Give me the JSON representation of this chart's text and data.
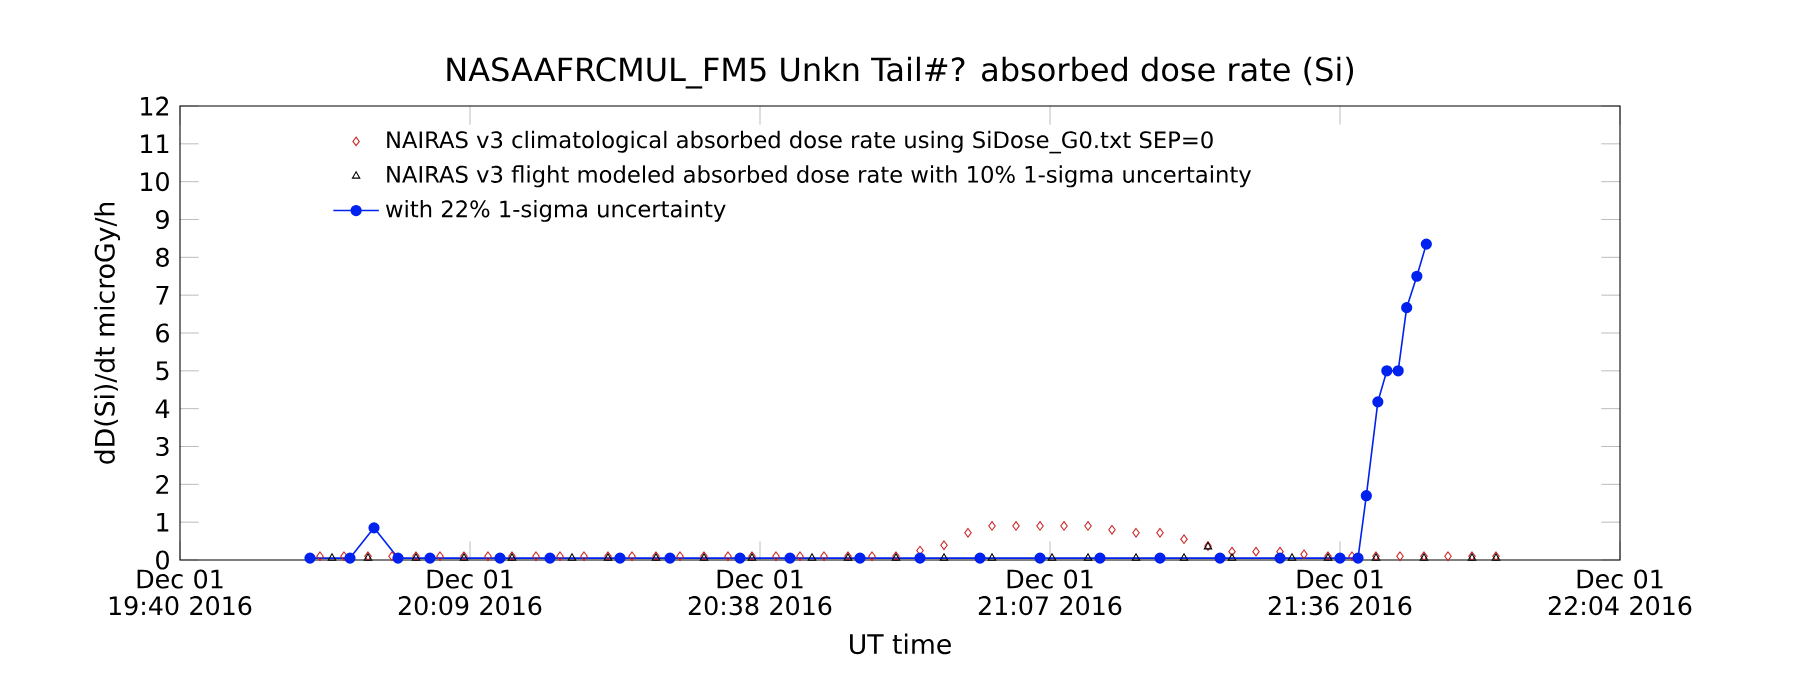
{
  "chart_data": {
    "type": "line",
    "title": "NASAAFRCMUL_FM5 Unkn Tail#? absorbed dose rate (Si)",
    "xlabel": "UT time",
    "ylabel": "dD(Si)/dt microGy/h",
    "xlim": [
      "2016-12-01T19:40",
      "2016-12-01T22:04"
    ],
    "ylim": [
      0,
      12
    ],
    "xticks": [
      {
        "value": "2016-12-01T19:40",
        "label": "Dec 01 19:40 2016"
      },
      {
        "value": "2016-12-01T20:09",
        "label": "Dec 01 20:09 2016"
      },
      {
        "value": "2016-12-01T20:38",
        "label": "Dec 01 20:38 2016"
      },
      {
        "value": "2016-12-01T21:07",
        "label": "Dec 01 21:07 2016"
      },
      {
        "value": "2016-12-01T21:36",
        "label": "Dec 01 21:36 2016"
      },
      {
        "value": "2016-12-01T22:04",
        "label": "Dec 01 22:04 2016"
      }
    ],
    "yticks": [
      0,
      1,
      2,
      3,
      4,
      5,
      6,
      7,
      8,
      9,
      10,
      11,
      12
    ],
    "legend": "top left",
    "series": [
      {
        "name": "NAIRAS v3 climatological absorbed dose rate using SiDose_G0.txt SEP=0",
        "type": "scatter",
        "marker": "diamond",
        "color": "#cc2222",
        "x": [
          "2016-12-01T19:54:00",
          "2016-12-01T19:56:24",
          "2016-12-01T19:58:48",
          "2016-12-01T20:01:12",
          "2016-12-01T20:03:36",
          "2016-12-01T20:06:00",
          "2016-12-01T20:08:24",
          "2016-12-01T20:10:48",
          "2016-12-01T20:13:12",
          "2016-12-01T20:15:36",
          "2016-12-01T20:18:00",
          "2016-12-01T20:20:24",
          "2016-12-01T20:22:48",
          "2016-12-01T20:25:12",
          "2016-12-01T20:27:36",
          "2016-12-01T20:30:00",
          "2016-12-01T20:32:24",
          "2016-12-01T20:34:48",
          "2016-12-01T20:37:12",
          "2016-12-01T20:39:36",
          "2016-12-01T20:42:00",
          "2016-12-01T20:44:24",
          "2016-12-01T20:46:48",
          "2016-12-01T20:49:12",
          "2016-12-01T20:51:36",
          "2016-12-01T20:54:00",
          "2016-12-01T20:56:24",
          "2016-12-01T20:58:48",
          "2016-12-01T21:01:12",
          "2016-12-01T21:03:36",
          "2016-12-01T21:06:00",
          "2016-12-01T21:08:24",
          "2016-12-01T21:10:48",
          "2016-12-01T21:13:12",
          "2016-12-01T21:15:36",
          "2016-12-01T21:18:00",
          "2016-12-01T21:20:24",
          "2016-12-01T21:22:48",
          "2016-12-01T21:25:12",
          "2016-12-01T21:27:36",
          "2016-12-01T21:30:00",
          "2016-12-01T21:32:24",
          "2016-12-01T21:34:48",
          "2016-12-01T21:37:12",
          "2016-12-01T21:39:36",
          "2016-12-01T21:42:00",
          "2016-12-01T21:44:24",
          "2016-12-01T21:46:48",
          "2016-12-01T21:49:12",
          "2016-12-01T21:51:36"
        ],
        "values": [
          0.1,
          0.1,
          0.1,
          0.1,
          0.1,
          0.1,
          0.1,
          0.1,
          0.1,
          0.1,
          0.1,
          0.1,
          0.1,
          0.1,
          0.1,
          0.1,
          0.1,
          0.1,
          0.1,
          0.1,
          0.1,
          0.1,
          0.1,
          0.1,
          0.1,
          0.25,
          0.39,
          0.72,
          0.9,
          0.9,
          0.9,
          0.9,
          0.9,
          0.8,
          0.72,
          0.72,
          0.55,
          0.37,
          0.22,
          0.22,
          0.22,
          0.15,
          0.1,
          0.1,
          0.1,
          0.1,
          0.1,
          0.1,
          0.1,
          0.1
        ]
      },
      {
        "name": "NAIRAS v3 flight modeled absorbed dose rate with 10% 1-sigma uncertainty",
        "type": "scatter",
        "marker": "triangle",
        "color": "#000000",
        "x": [
          "2016-12-01T19:55:12",
          "2016-12-01T19:58:48",
          "2016-12-01T20:03:36",
          "2016-12-01T20:08:24",
          "2016-12-01T20:13:12",
          "2016-12-01T20:19:12",
          "2016-12-01T20:22:48",
          "2016-12-01T20:27:36",
          "2016-12-01T20:32:24",
          "2016-12-01T20:37:12",
          "2016-12-01T20:43:12",
          "2016-12-01T20:46:48",
          "2016-12-01T20:51:36",
          "2016-12-01T20:56:24",
          "2016-12-01T21:01:12",
          "2016-12-01T21:07:12",
          "2016-12-01T21:10:48",
          "2016-12-01T21:15:36",
          "2016-12-01T21:20:24",
          "2016-12-01T21:22:48",
          "2016-12-01T21:25:12",
          "2016-12-01T21:31:12",
          "2016-12-01T21:34:48",
          "2016-12-01T21:39:36",
          "2016-12-01T21:44:24",
          "2016-12-01T21:49:12",
          "2016-12-01T21:51:36"
        ],
        "values": [
          0.05,
          0.05,
          0.05,
          0.05,
          0.05,
          0.05,
          0.05,
          0.05,
          0.05,
          0.05,
          0.05,
          0.05,
          0.05,
          0.05,
          0.05,
          0.05,
          0.05,
          0.05,
          0.05,
          0.35,
          0.05,
          0.05,
          0.05,
          0.05,
          0.05,
          0.05,
          0.05
        ]
      },
      {
        "name": "with 22% 1-sigma uncertainty",
        "type": "line",
        "marker": "circle",
        "color": "#0022ee",
        "x": [
          "2016-12-01T19:53:00",
          "2016-12-01T19:57:00",
          "2016-12-01T19:59:24",
          "2016-12-01T20:01:48",
          "2016-12-01T20:05:00",
          "2016-12-01T20:12:00",
          "2016-12-01T20:17:00",
          "2016-12-01T20:24:00",
          "2016-12-01T20:29:00",
          "2016-12-01T20:36:00",
          "2016-12-01T20:41:00",
          "2016-12-01T20:48:00",
          "2016-12-01T20:54:00",
          "2016-12-01T21:00:00",
          "2016-12-01T21:06:00",
          "2016-12-01T21:12:00",
          "2016-12-01T21:18:00",
          "2016-12-01T21:24:00",
          "2016-12-01T21:30:00",
          "2016-12-01T21:36:00",
          "2016-12-01T21:37:48",
          "2016-12-01T21:38:38",
          "2016-12-01T21:39:47",
          "2016-12-01T21:40:41",
          "2016-12-01T21:41:49",
          "2016-12-01T21:42:40",
          "2016-12-01T21:43:41",
          "2016-12-01T21:44:38"
        ],
        "values": [
          0.05,
          0.05,
          0.85,
          0.05,
          0.05,
          0.05,
          0.05,
          0.05,
          0.05,
          0.05,
          0.05,
          0.05,
          0.05,
          0.05,
          0.05,
          0.05,
          0.05,
          0.05,
          0.05,
          0.05,
          0.05,
          1.7,
          4.18,
          5.0,
          5.0,
          6.67,
          7.5,
          8.35
        ]
      }
    ]
  }
}
